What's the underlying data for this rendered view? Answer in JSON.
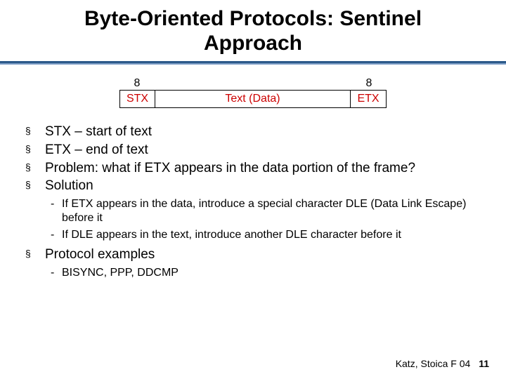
{
  "title": "Byte-Oriented Protocols: Sentinel Approach",
  "diagram": {
    "left_bits": "8",
    "right_bits": "8",
    "stx": "STX",
    "data": "Text (Data)",
    "etx": "ETX",
    "text_color": "#cc0000",
    "border_color": "#000000"
  },
  "bullets": [
    {
      "text": "STX – start of text"
    },
    {
      "text": "ETX – end of text"
    },
    {
      "text": "Problem: what if ETX appears in the data portion of the frame?"
    },
    {
      "text": "Solution",
      "sub": [
        "If ETX appears in the data, introduce a special character DLE (Data Link Escape) before it",
        "If DLE appears in the text, introduce another DLE character before it"
      ]
    },
    {
      "text": "Protocol examples",
      "sub": [
        "BISYNC, PPP, DDCMP"
      ]
    }
  ],
  "footer": {
    "credit": "Katz, Stoica F 04",
    "page": "11"
  },
  "colors": {
    "divider_top": "#2c5a8a",
    "divider_bottom": "#7a9bc4"
  }
}
